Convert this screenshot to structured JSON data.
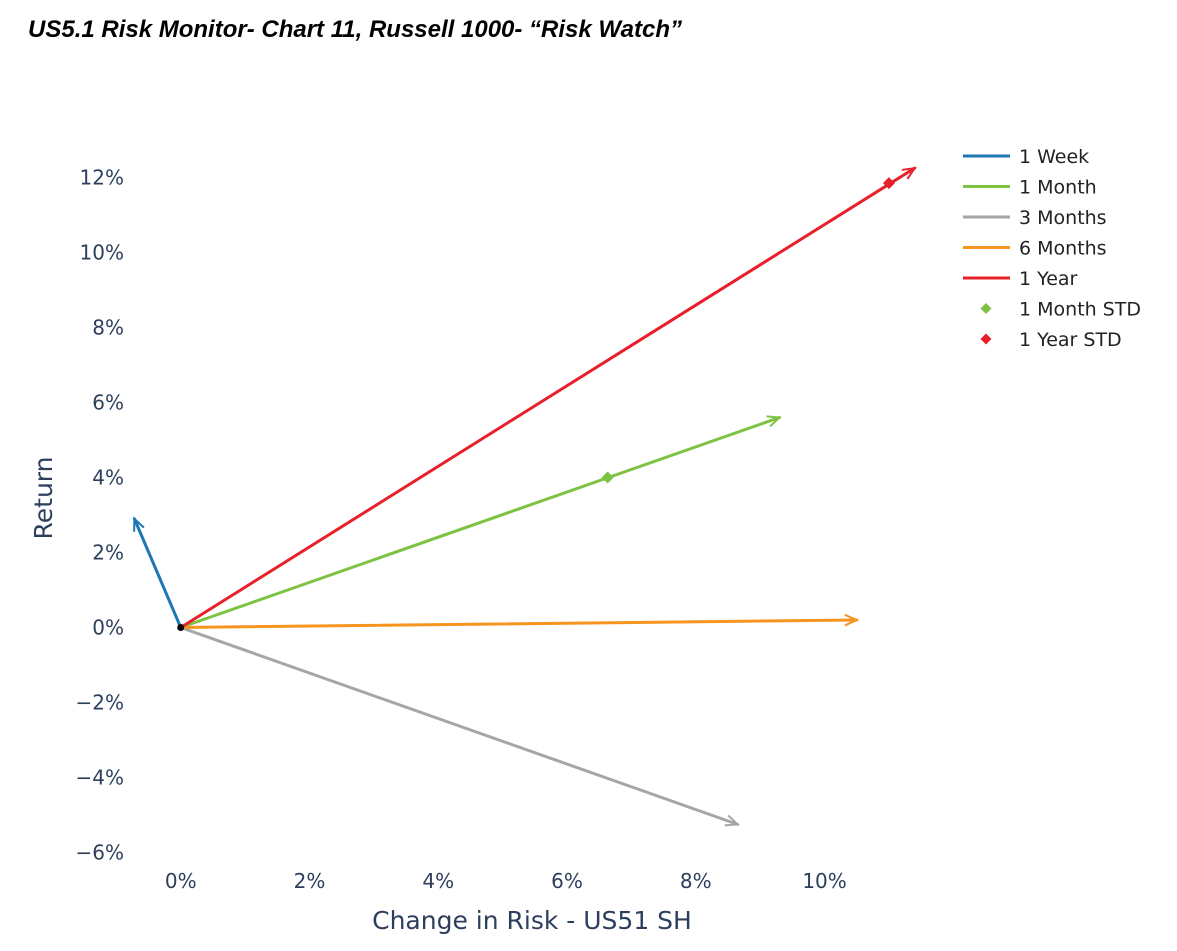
{
  "title": "US5.1 Risk Monitor- Chart 11, Russell 1000- “Risk Watch”",
  "chart_data": {
    "type": "line",
    "title": "US5.1 Risk Monitor- Chart 11, Russell 1000- “Risk Watch”",
    "xlabel": "Change in Risk - US51 SH",
    "ylabel": "Return",
    "x_ticks": [
      "0%",
      "2%",
      "4%",
      "6%",
      "8%",
      "10%"
    ],
    "y_ticks": [
      "12%",
      "10%",
      "8%",
      "6%",
      "4%",
      "2%",
      "0%",
      "−2%",
      "−4%",
      "−6%"
    ],
    "x_tick_values": [
      0,
      2,
      4,
      6,
      8,
      10
    ],
    "y_tick_values": [
      12,
      10,
      8,
      6,
      4,
      2,
      0,
      -2,
      -4,
      -6
    ],
    "xlim": [
      -0.85,
      11.7
    ],
    "ylim": [
      -6.6,
      13.0
    ],
    "grid": false,
    "legend_position": "top-right",
    "origin": {
      "x": 0,
      "y": 0
    },
    "series": [
      {
        "name": "1 Week",
        "kind": "vector",
        "color": "#1f77b4",
        "from": [
          0,
          0
        ],
        "to": [
          -0.72,
          2.9
        ]
      },
      {
        "name": "1 Month",
        "kind": "vector",
        "color": "#7dc242",
        "from": [
          0,
          0
        ],
        "to": [
          9.3,
          5.6
        ]
      },
      {
        "name": "3 Months",
        "kind": "vector",
        "color": "#a6a6a6",
        "from": [
          0,
          0
        ],
        "to": [
          8.65,
          -5.25
        ]
      },
      {
        "name": "6 Months",
        "kind": "vector",
        "color": "#f7941d",
        "from": [
          0,
          0
        ],
        "to": [
          10.5,
          0.2
        ]
      },
      {
        "name": "1 Year",
        "kind": "vector",
        "color": "#e8202a",
        "from": [
          0,
          0
        ],
        "to": [
          11.4,
          12.25
        ]
      },
      {
        "name": "1 Month STD",
        "kind": "marker",
        "color": "#7dc242",
        "point": [
          6.63,
          4.0
        ]
      },
      {
        "name": "1 Year STD",
        "kind": "marker",
        "color": "#e8202a",
        "point": [
          11.0,
          11.85
        ]
      }
    ]
  }
}
